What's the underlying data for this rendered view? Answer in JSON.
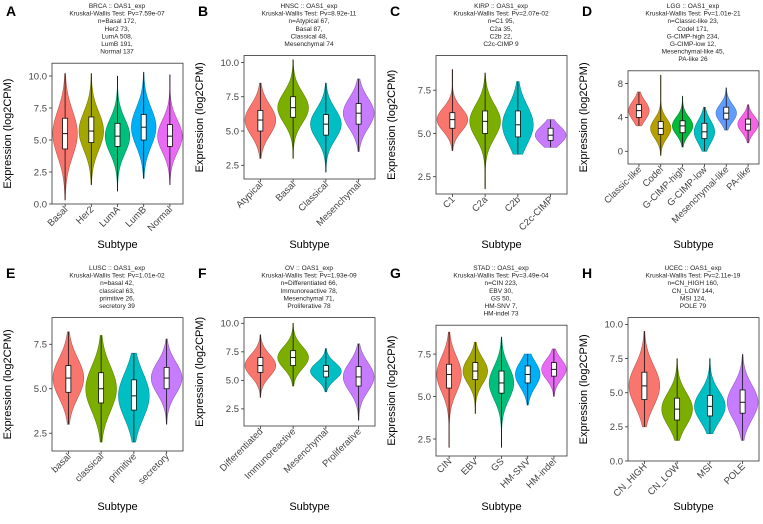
{
  "chart_data": [
    {
      "panel": "A",
      "type": "violin",
      "title": [
        "BRCA :: OAS1_exp",
        "Kruskal-Wallis Test: Pv=7.59e-07",
        "n=Basal 172,",
        "Her2 73,",
        "LumA 508,",
        "LumB 191,",
        "Normal 137"
      ],
      "xlabel": "Subtype",
      "ylabel": "Expression (log2CPM)",
      "ylim": [
        0,
        11
      ],
      "yticks": [
        "0.0",
        "2.5",
        "5.0",
        "7.5",
        "10.0"
      ],
      "ytick_values": [
        0,
        2.5,
        5,
        7.5,
        10
      ],
      "categories": [
        "Basal",
        "Her2",
        "LumA",
        "LumB",
        "Normal"
      ],
      "colors": [
        "#F8766D",
        "#A3A500",
        "#00BF7D",
        "#00B0F6",
        "#E76BF3"
      ],
      "stats": [
        {
          "min": 0.3,
          "q1": 4.3,
          "median": 5.5,
          "q3": 6.7,
          "max": 10.2
        },
        {
          "min": 1.5,
          "q1": 4.8,
          "median": 5.7,
          "q3": 6.8,
          "max": 10.2
        },
        {
          "min": 1.0,
          "q1": 4.5,
          "median": 5.3,
          "q3": 6.3,
          "max": 10.0
        },
        {
          "min": 2.0,
          "q1": 5.0,
          "median": 6.0,
          "q3": 7.0,
          "max": 10.3
        },
        {
          "min": 1.5,
          "q1": 4.5,
          "median": 5.3,
          "q3": 6.2,
          "max": 10.1
        }
      ]
    },
    {
      "panel": "B",
      "type": "violin",
      "title": [
        "HNSC :: OAS1_exp",
        "Kruskal-Wallis Test: Pv=8.92e-11",
        "n=Atypical 67,",
        "Basal 87,",
        "Classical 48,",
        "Mesenchymal 74"
      ],
      "xlabel": "Subtype",
      "ylabel": "Expression (log2CPM)",
      "ylim": [
        1.5,
        10.5
      ],
      "yticks": [
        "2.5",
        "5.0",
        "7.5",
        "10.0"
      ],
      "ytick_values": [
        2.5,
        5,
        7.5,
        10
      ],
      "categories": [
        "Atypical",
        "Basal",
        "Classical",
        "Mesenchymal"
      ],
      "colors": [
        "#F8766D",
        "#7CAE00",
        "#00BFC4",
        "#C77CFF"
      ],
      "stats": [
        {
          "min": 3.0,
          "q1": 5.0,
          "median": 5.8,
          "q3": 6.5,
          "max": 8.5
        },
        {
          "min": 3.0,
          "q1": 6.0,
          "median": 6.7,
          "q3": 7.5,
          "max": 10.2
        },
        {
          "min": 2.0,
          "q1": 4.7,
          "median": 5.5,
          "q3": 6.2,
          "max": 8.5
        },
        {
          "min": 3.5,
          "q1": 5.5,
          "median": 6.3,
          "q3": 7.0,
          "max": 8.8
        }
      ]
    },
    {
      "panel": "C",
      "type": "violin",
      "title": [
        "KIRP :: OAS1_exp",
        "Kruskal-Wallis Test: Pv=2.07e-02",
        "n=C1 95,",
        "C2a 35,",
        "C2b 22,",
        "C2c-CIMP 9"
      ],
      "xlabel": "Subtype",
      "ylabel": "Expression (log2CPM)",
      "ylim": [
        1.5,
        9.5
      ],
      "yticks": [
        "2.5",
        "5.0",
        "7.5"
      ],
      "ytick_values": [
        2.5,
        5,
        7.5
      ],
      "categories": [
        "C1",
        "C2a",
        "C2b",
        "C2c-CIMP"
      ],
      "colors": [
        "#F8766D",
        "#7CAE00",
        "#00BFC4",
        "#C77CFF"
      ],
      "stats": [
        {
          "min": 4.0,
          "q1": 5.3,
          "median": 5.8,
          "q3": 6.2,
          "max": 8.7
        },
        {
          "min": 1.8,
          "q1": 5.0,
          "median": 5.7,
          "q3": 6.3,
          "max": 8.5
        },
        {
          "min": 3.8,
          "q1": 4.8,
          "median": 5.5,
          "q3": 6.3,
          "max": 8.0
        },
        {
          "min": 4.2,
          "q1": 4.6,
          "median": 4.9,
          "q3": 5.3,
          "max": 5.8
        }
      ]
    },
    {
      "panel": "D",
      "type": "violin",
      "title": [
        "LGG :: OAS1_exp",
        "Kruskal-Wallis Test: Pv=1.01e-21",
        "n=Classic-like 23,",
        "Codel 171,",
        "G-CIMP-high 234,",
        "G-CIMP-low 12,",
        "Mesenchymal-like 45,",
        "PA-like 26"
      ],
      "xlabel": "Subtype",
      "ylabel": "Expression (log2CPM)",
      "ylim": [
        -1.5,
        9.5
      ],
      "yticks": [
        "0",
        "4",
        "8"
      ],
      "ytick_values": [
        0,
        4,
        8
      ],
      "categories": [
        "Classic-like",
        "Codel",
        "G-CIMP-high",
        "G-CIMP-low",
        "Mesenchymal-like",
        "PA-like"
      ],
      "colors": [
        "#F8766D",
        "#B79F00",
        "#00BA38",
        "#00BFC4",
        "#619CFF",
        "#F564E3"
      ],
      "stats": [
        {
          "min": 3.0,
          "q1": 4.0,
          "median": 4.8,
          "q3": 5.5,
          "max": 7.0
        },
        {
          "min": -0.5,
          "q1": 2.0,
          "median": 2.7,
          "q3": 3.5,
          "max": 9.0
        },
        {
          "min": 0.5,
          "q1": 2.2,
          "median": 3.0,
          "q3": 3.6,
          "max": 6.5
        },
        {
          "min": 0.0,
          "q1": 1.5,
          "median": 2.3,
          "q3": 3.3,
          "max": 5.2
        },
        {
          "min": 2.5,
          "q1": 3.8,
          "median": 4.5,
          "q3": 5.2,
          "max": 7.5
        },
        {
          "min": 1.0,
          "q1": 2.5,
          "median": 3.2,
          "q3": 3.8,
          "max": 5.5
        }
      ]
    },
    {
      "panel": "E",
      "type": "violin",
      "title": [
        "LUSC :: OAS1_exp",
        "Kruskal-Wallis Test: Pv=1.01e-02",
        "n=basal 42,",
        "classical 63,",
        "primitive 26,",
        "secretory 39"
      ],
      "xlabel": "Subtype",
      "ylabel": "Expression (log2CPM)",
      "ylim": [
        1.5,
        9
      ],
      "yticks": [
        "2.5",
        "5.0",
        "7.5"
      ],
      "ytick_values": [
        2.5,
        5,
        7.5
      ],
      "categories": [
        "basal",
        "classical",
        "primitive",
        "secretory"
      ],
      "colors": [
        "#F8766D",
        "#7CAE00",
        "#00BFC4",
        "#C77CFF"
      ],
      "stats": [
        {
          "min": 3.0,
          "q1": 4.8,
          "median": 5.6,
          "q3": 6.3,
          "max": 8.2
        },
        {
          "min": 2.0,
          "q1": 4.2,
          "median": 5.0,
          "q3": 5.9,
          "max": 8.0
        },
        {
          "min": 2.0,
          "q1": 3.8,
          "median": 4.6,
          "q3": 5.5,
          "max": 7.0
        },
        {
          "min": 3.0,
          "q1": 5.0,
          "median": 5.6,
          "q3": 6.2,
          "max": 7.8
        }
      ]
    },
    {
      "panel": "F",
      "type": "violin",
      "title": [
        "OV :: OAS1_exp",
        "Kruskal-Wallis Test: Pv=1.93e-09",
        "n=Differentiated 66,",
        "Immunoreactive 78,",
        "Mesenchymal 71,",
        "Proliferative 78"
      ],
      "xlabel": "Subtype",
      "ylabel": "Expression (log2CPM)",
      "ylim": [
        1,
        10.5
      ],
      "yticks": [
        "2.5",
        "5.0",
        "7.5",
        "10.0"
      ],
      "ytick_values": [
        2.5,
        5,
        7.5,
        10
      ],
      "categories": [
        "Differentiated",
        "Immunoreactive",
        "Mesenchymal",
        "Proliferative"
      ],
      "colors": [
        "#F8766D",
        "#7CAE00",
        "#00BFC4",
        "#C77CFF"
      ],
      "stats": [
        {
          "min": 3.5,
          "q1": 5.7,
          "median": 6.3,
          "q3": 7.0,
          "max": 9.0
        },
        {
          "min": 4.5,
          "q1": 6.3,
          "median": 7.0,
          "q3": 7.6,
          "max": 10.0
        },
        {
          "min": 4.0,
          "q1": 5.3,
          "median": 5.8,
          "q3": 6.3,
          "max": 7.8
        },
        {
          "min": 1.5,
          "q1": 4.5,
          "median": 5.3,
          "q3": 6.2,
          "max": 8.2
        }
      ]
    },
    {
      "panel": "G",
      "type": "violin",
      "title": [
        "STAD :: OAS1_exp",
        "Kruskal-Wallis Test: Pv=3.49e-04",
        "n=CIN 223,",
        "EBV 30,",
        "GS 50,",
        "HM-SNV 7,",
        "HM-indel 73"
      ],
      "xlabel": "Subtype",
      "ylabel": "Expression (log2CPM)",
      "ylim": [
        1.5,
        9.2
      ],
      "yticks": [
        "2.5",
        "5.0",
        "7.5"
      ],
      "ytick_values": [
        2.5,
        5,
        7.5
      ],
      "categories": [
        "CIN",
        "EBV",
        "GS",
        "HM-SNV",
        "HM-indel"
      ],
      "colors": [
        "#F8766D",
        "#A3A500",
        "#00BF7D",
        "#00B0F6",
        "#E76BF3"
      ],
      "stats": [
        {
          "min": 2.0,
          "q1": 5.5,
          "median": 6.3,
          "q3": 6.9,
          "max": 8.8
        },
        {
          "min": 4.0,
          "q1": 6.0,
          "median": 6.5,
          "q3": 7.0,
          "max": 8.2
        },
        {
          "min": 2.0,
          "q1": 5.2,
          "median": 5.8,
          "q3": 6.5,
          "max": 8.5
        },
        {
          "min": 4.5,
          "q1": 5.8,
          "median": 6.3,
          "q3": 6.8,
          "max": 7.5
        },
        {
          "min": 5.0,
          "q1": 6.2,
          "median": 6.6,
          "q3": 7.0,
          "max": 7.8
        }
      ]
    },
    {
      "panel": "H",
      "type": "violin",
      "title": [
        "UCEC :: OAS1_exp",
        "Kruskal-Wallis Test: Pv=2.11e-19",
        "n=CN_HIGH 160,",
        "CN_LOW 144,",
        "MSI 124,",
        "POLE 79"
      ],
      "xlabel": "Subtype",
      "ylabel": "Expression (log2CPM)",
      "ylim": [
        0,
        10.5
      ],
      "yticks": [
        "0.0",
        "2.5",
        "5.0",
        "7.5",
        "10.0"
      ],
      "ytick_values": [
        0,
        2.5,
        5,
        7.5,
        10
      ],
      "categories": [
        "CN_HIGH",
        "CN_LOW",
        "MSI",
        "POLE"
      ],
      "colors": [
        "#F8766D",
        "#7CAE00",
        "#00BFC4",
        "#C77CFF"
      ],
      "stats": [
        {
          "min": 2.5,
          "q1": 4.5,
          "median": 5.5,
          "q3": 6.5,
          "max": 9.5
        },
        {
          "min": 1.5,
          "q1": 3.0,
          "median": 3.8,
          "q3": 4.6,
          "max": 7.5
        },
        {
          "min": 2.0,
          "q1": 3.3,
          "median": 4.0,
          "q3": 4.8,
          "max": 7.5
        },
        {
          "min": 1.5,
          "q1": 3.5,
          "median": 4.3,
          "q3": 5.2,
          "max": 7.8
        }
      ]
    }
  ]
}
